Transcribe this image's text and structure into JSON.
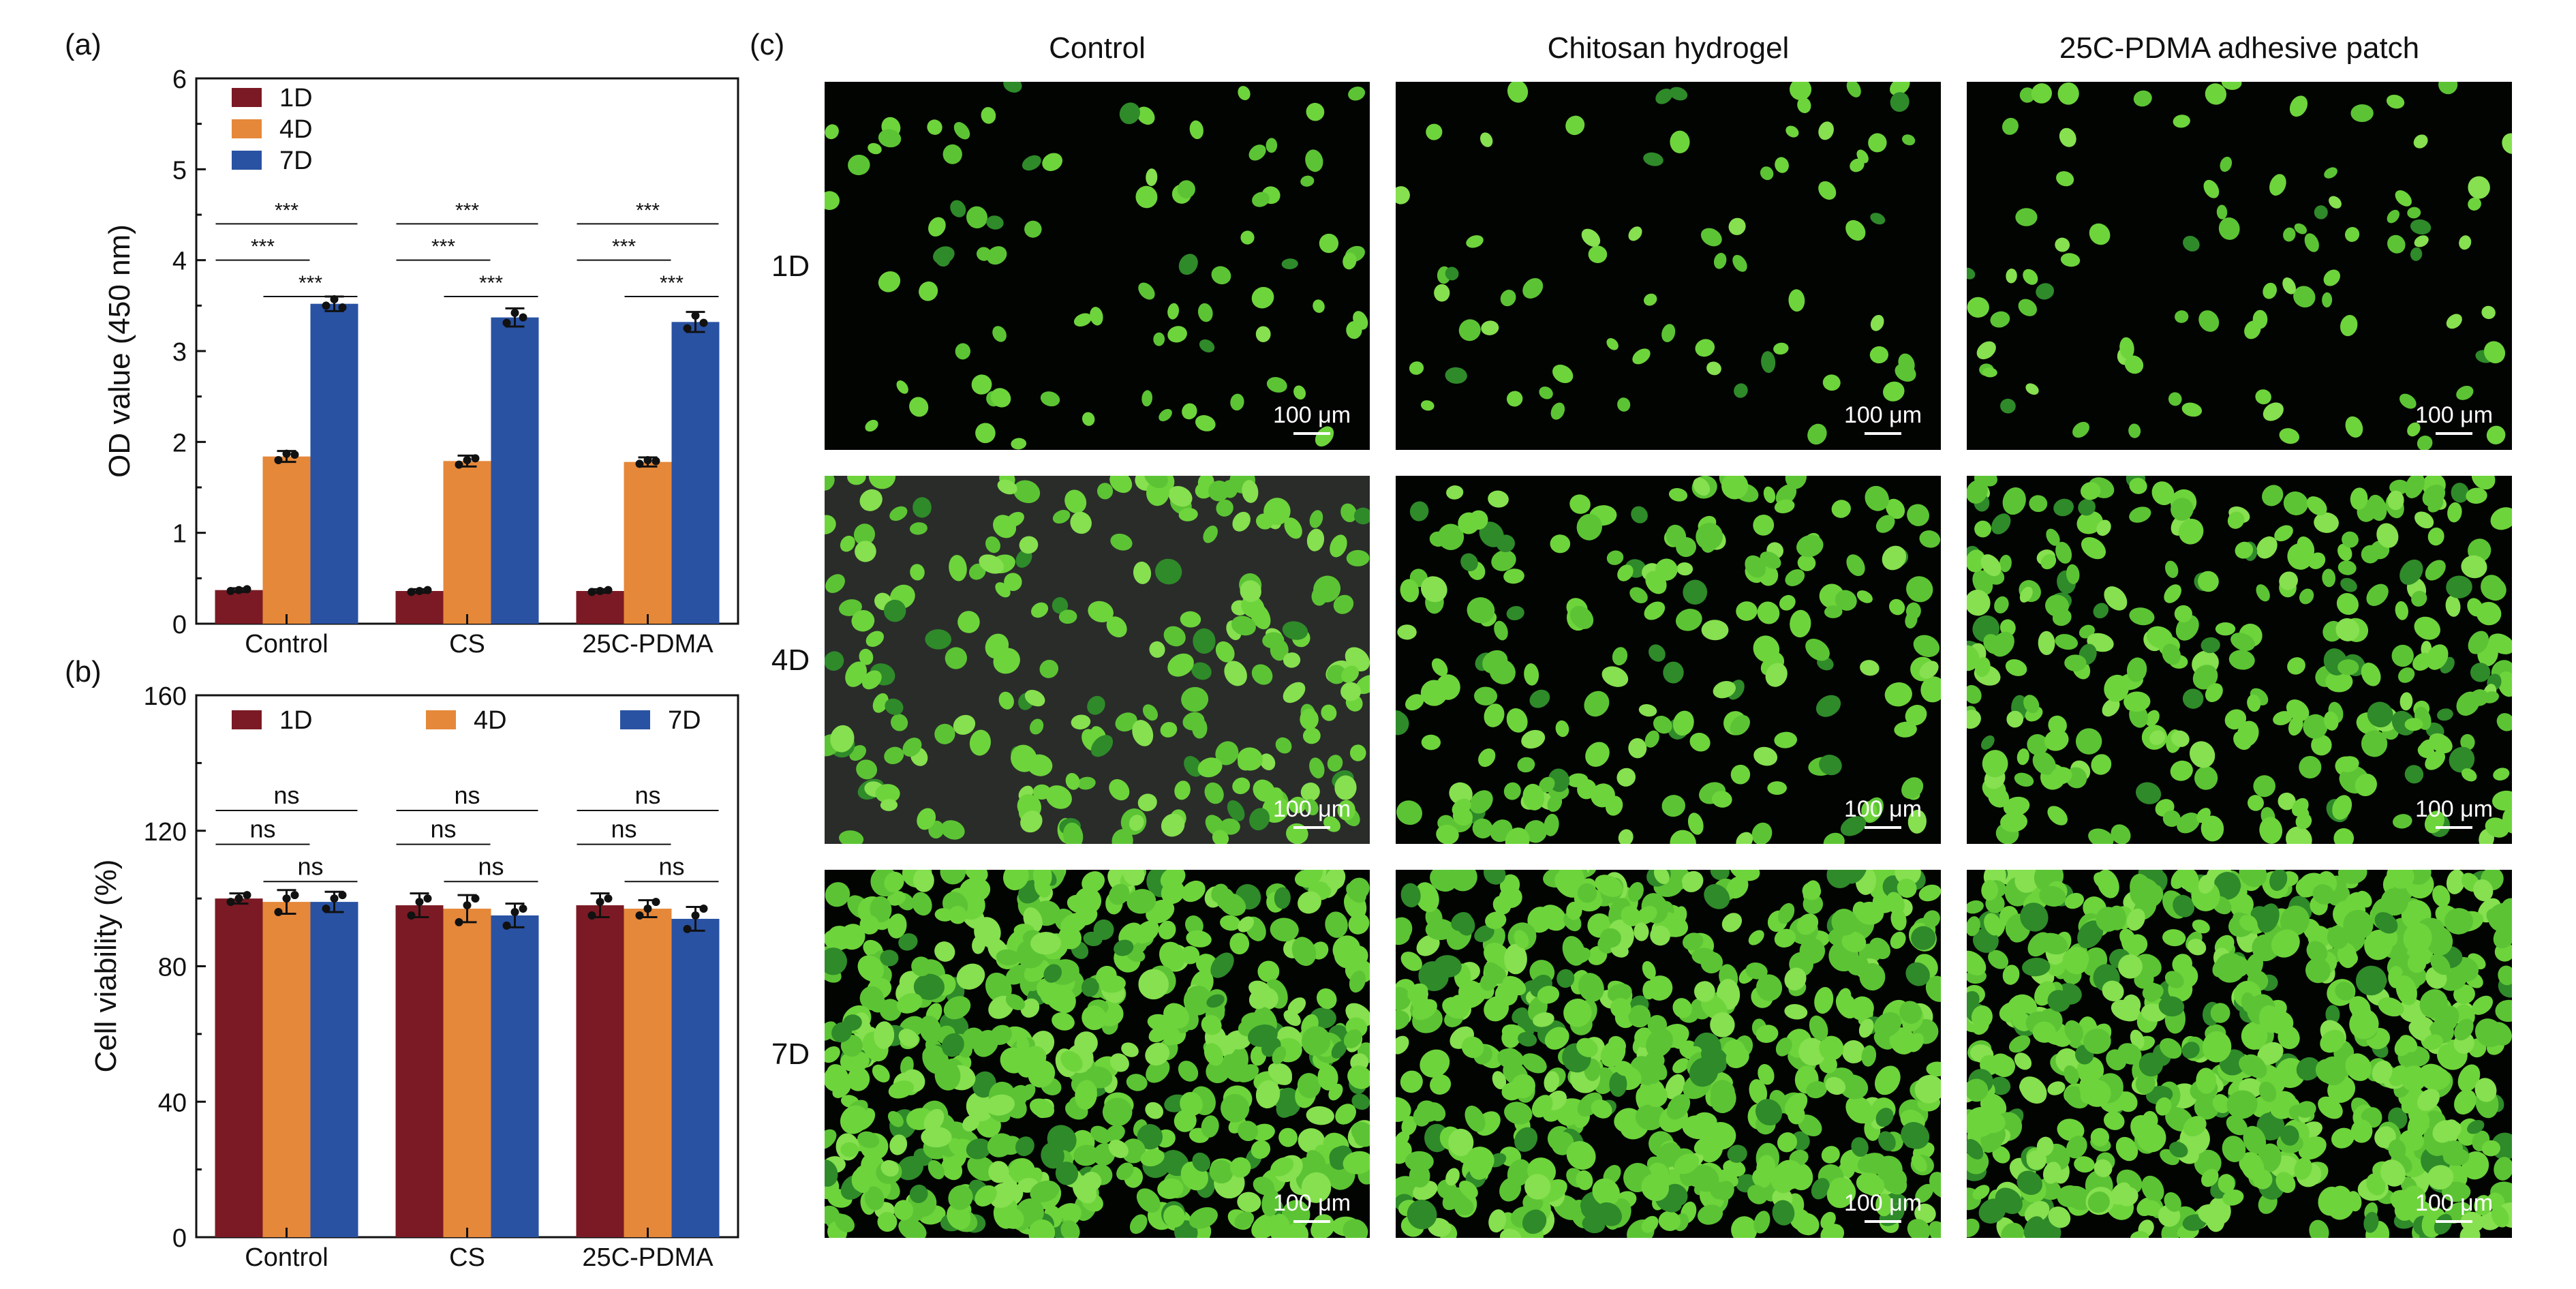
{
  "panels": {
    "a": {
      "letter": "(a)"
    },
    "b": {
      "letter": "(b)"
    },
    "c": {
      "letter": "(c)"
    }
  },
  "colors": {
    "1D": "#7b1a24",
    "4D": "#e5883a",
    "7D": "#2952a3",
    "cell_green": "#6ed43c",
    "cell_dark_green": "#2f8a2a",
    "micro_bg": "#020402"
  },
  "chart_data": [
    {
      "id": "a",
      "type": "bar",
      "categories": [
        "Control",
        "CS",
        "25C-PDMA"
      ],
      "series": [
        {
          "name": "1D",
          "values": [
            0.37,
            0.36,
            0.36
          ],
          "errors": [
            0.02,
            0.02,
            0.02
          ],
          "points": [
            [
              0.36,
              0.37,
              0.38
            ],
            [
              0.35,
              0.36,
              0.37
            ],
            [
              0.35,
              0.36,
              0.37
            ]
          ]
        },
        {
          "name": "4D",
          "values": [
            1.84,
            1.79,
            1.78
          ],
          "errors": [
            0.06,
            0.06,
            0.05
          ],
          "points": [
            [
              1.8,
              1.87,
              1.86
            ],
            [
              1.75,
              1.8,
              1.82
            ],
            [
              1.76,
              1.8,
              1.79
            ]
          ]
        },
        {
          "name": "7D",
          "values": [
            3.52,
            3.37,
            3.32
          ],
          "errors": [
            0.08,
            0.1,
            0.11
          ],
          "points": [
            [
              3.5,
              3.57,
              3.48
            ],
            [
              3.31,
              3.42,
              3.37
            ],
            [
              3.25,
              3.39,
              3.31
            ]
          ]
        }
      ],
      "ylabel": "OD value (450 nm)",
      "ylim": [
        0,
        6
      ],
      "yticks": [
        "0",
        "1",
        "2",
        "3",
        "4",
        "5",
        "6"
      ],
      "legend": {
        "placement": "top-left",
        "layout": "vertical"
      },
      "significance": [
        {
          "label": "***",
          "from": "1D",
          "to": "7D",
          "level": 4.4
        },
        {
          "label": "***",
          "from": "1D",
          "to": "4D",
          "level": 4.0
        },
        {
          "label": "***",
          "from": "4D",
          "to": "7D",
          "level": 3.6
        }
      ]
    },
    {
      "id": "b",
      "type": "bar",
      "categories": [
        "Control",
        "CS",
        "25C-PDMA"
      ],
      "series": [
        {
          "name": "1D",
          "values": [
            100,
            98,
            98
          ],
          "errors": [
            1.5,
            3.5,
            3.5
          ],
          "points": [
            [
              99,
              100,
              101
            ],
            [
              95,
              99,
              100
            ],
            [
              95,
              99,
              100
            ]
          ]
        },
        {
          "name": "4D",
          "values": [
            99,
            97,
            97
          ],
          "errors": [
            3.5,
            4.0,
            2.5
          ],
          "points": [
            [
              96,
              100,
              101
            ],
            [
              93,
              98,
              100
            ],
            [
              95,
              97,
              99
            ]
          ]
        },
        {
          "name": "7D",
          "values": [
            99,
            95,
            94
          ],
          "errors": [
            3.0,
            3.5,
            3.5
          ],
          "points": [
            [
              97,
              100,
              101
            ],
            [
              92,
              96,
              97
            ],
            [
              91,
              95,
              97
            ]
          ]
        }
      ],
      "ylabel": "Cell viability (%)",
      "ylim": [
        0,
        160
      ],
      "yticks": [
        "0",
        "40",
        "80",
        "120",
        "160"
      ],
      "legend": {
        "placement": "top-left",
        "layout": "horizontal"
      },
      "significance": [
        {
          "label": "ns",
          "from": "1D",
          "to": "7D",
          "level": 126
        },
        {
          "label": "ns",
          "from": "1D",
          "to": "4D",
          "level": 116
        },
        {
          "label": "ns",
          "from": "4D",
          "to": "7D",
          "level": 105
        }
      ]
    }
  ],
  "micrographs": {
    "columns": [
      "Control",
      "Chitosan hydrogel",
      "25C-PDMA adhesive patch"
    ],
    "rows": [
      "1D",
      "4D",
      "7D"
    ],
    "scalebar": "100 μm",
    "density": [
      [
        80,
        65,
        85
      ],
      [
        210,
        190,
        280
      ],
      [
        560,
        520,
        620
      ]
    ]
  }
}
